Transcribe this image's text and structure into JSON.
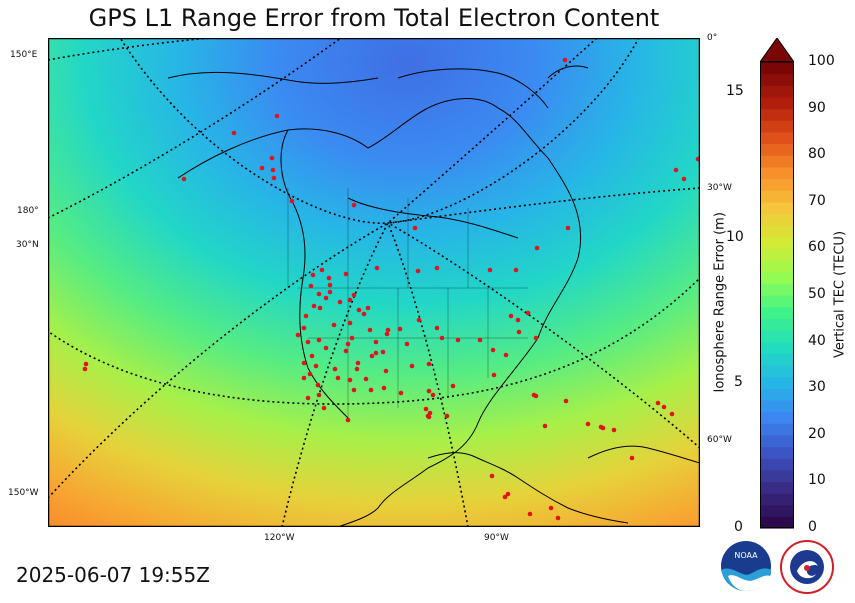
{
  "title": "GPS L1 Range Error from Total Electron Content",
  "timestamp": "2025-06-07 19:55Z",
  "map": {
    "type": "polar-stereographic TEC map",
    "graticule_labels": {
      "left_150E": "150°E",
      "left_180": "180°",
      "left_30N": "30°N",
      "left_150W": "150°W",
      "bottom_120W": "120°W",
      "bottom_90W": "90°W",
      "right_0": "0°",
      "right_30W": "30°W",
      "right_60W": "60°W"
    },
    "station_marker_color": "#e0141a",
    "coastline_color": "#000000"
  },
  "left_axis": {
    "title": "Ionosphere Range Error (m)",
    "ticks": [
      "0",
      "5",
      "10",
      "15"
    ]
  },
  "right_axis": {
    "title": "Vertical TEC (TECU)",
    "ticks": [
      "0",
      "10",
      "20",
      "30",
      "40",
      "50",
      "60",
      "70",
      "80",
      "90",
      "100"
    ]
  },
  "colorbar": {
    "min": 0,
    "max": 100,
    "extend": "max",
    "colors": [
      "#2b0a4e",
      "#3a2c86",
      "#3b55c5",
      "#3d86f2",
      "#25b6e6",
      "#22dcc0",
      "#3ef389",
      "#93fb52",
      "#d2eb35",
      "#f6c53b",
      "#f7902a",
      "#e0501a",
      "#b11e0c",
      "#7a0606"
    ]
  },
  "logos": {
    "noaa": "NOAA",
    "nws": "NATIONAL WEATHER SERVICE"
  }
}
